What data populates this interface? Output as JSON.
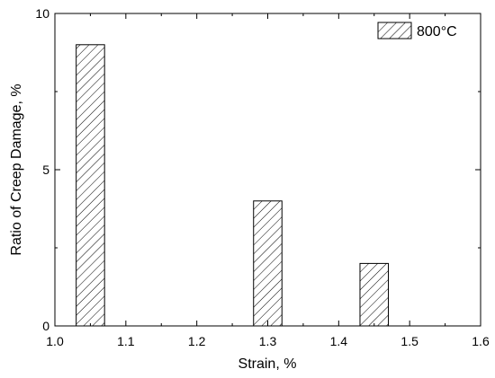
{
  "chart_data": {
    "type": "bar",
    "x": [
      1.05,
      1.3,
      1.45
    ],
    "series": [
      {
        "name": "800°C",
        "values": [
          9.0,
          4.0,
          2.0
        ]
      }
    ],
    "bar_width": 0.04,
    "xlabel": "Strain, %",
    "ylabel": "Ratio of Creep Damage, %",
    "xlim": [
      1.0,
      1.6
    ],
    "ylim": [
      0,
      10
    ],
    "xticks": [
      "1.0",
      "1.1",
      "1.2",
      "1.3",
      "1.4",
      "1.5",
      "1.6"
    ],
    "yticks": [
      "0",
      "5",
      "10"
    ],
    "grid": false,
    "legend_position": "top-right",
    "bar_fill": "hatched",
    "colors": {
      "bar_edge": "#000000",
      "hatch": "#000000",
      "background": "#ffffff"
    }
  }
}
